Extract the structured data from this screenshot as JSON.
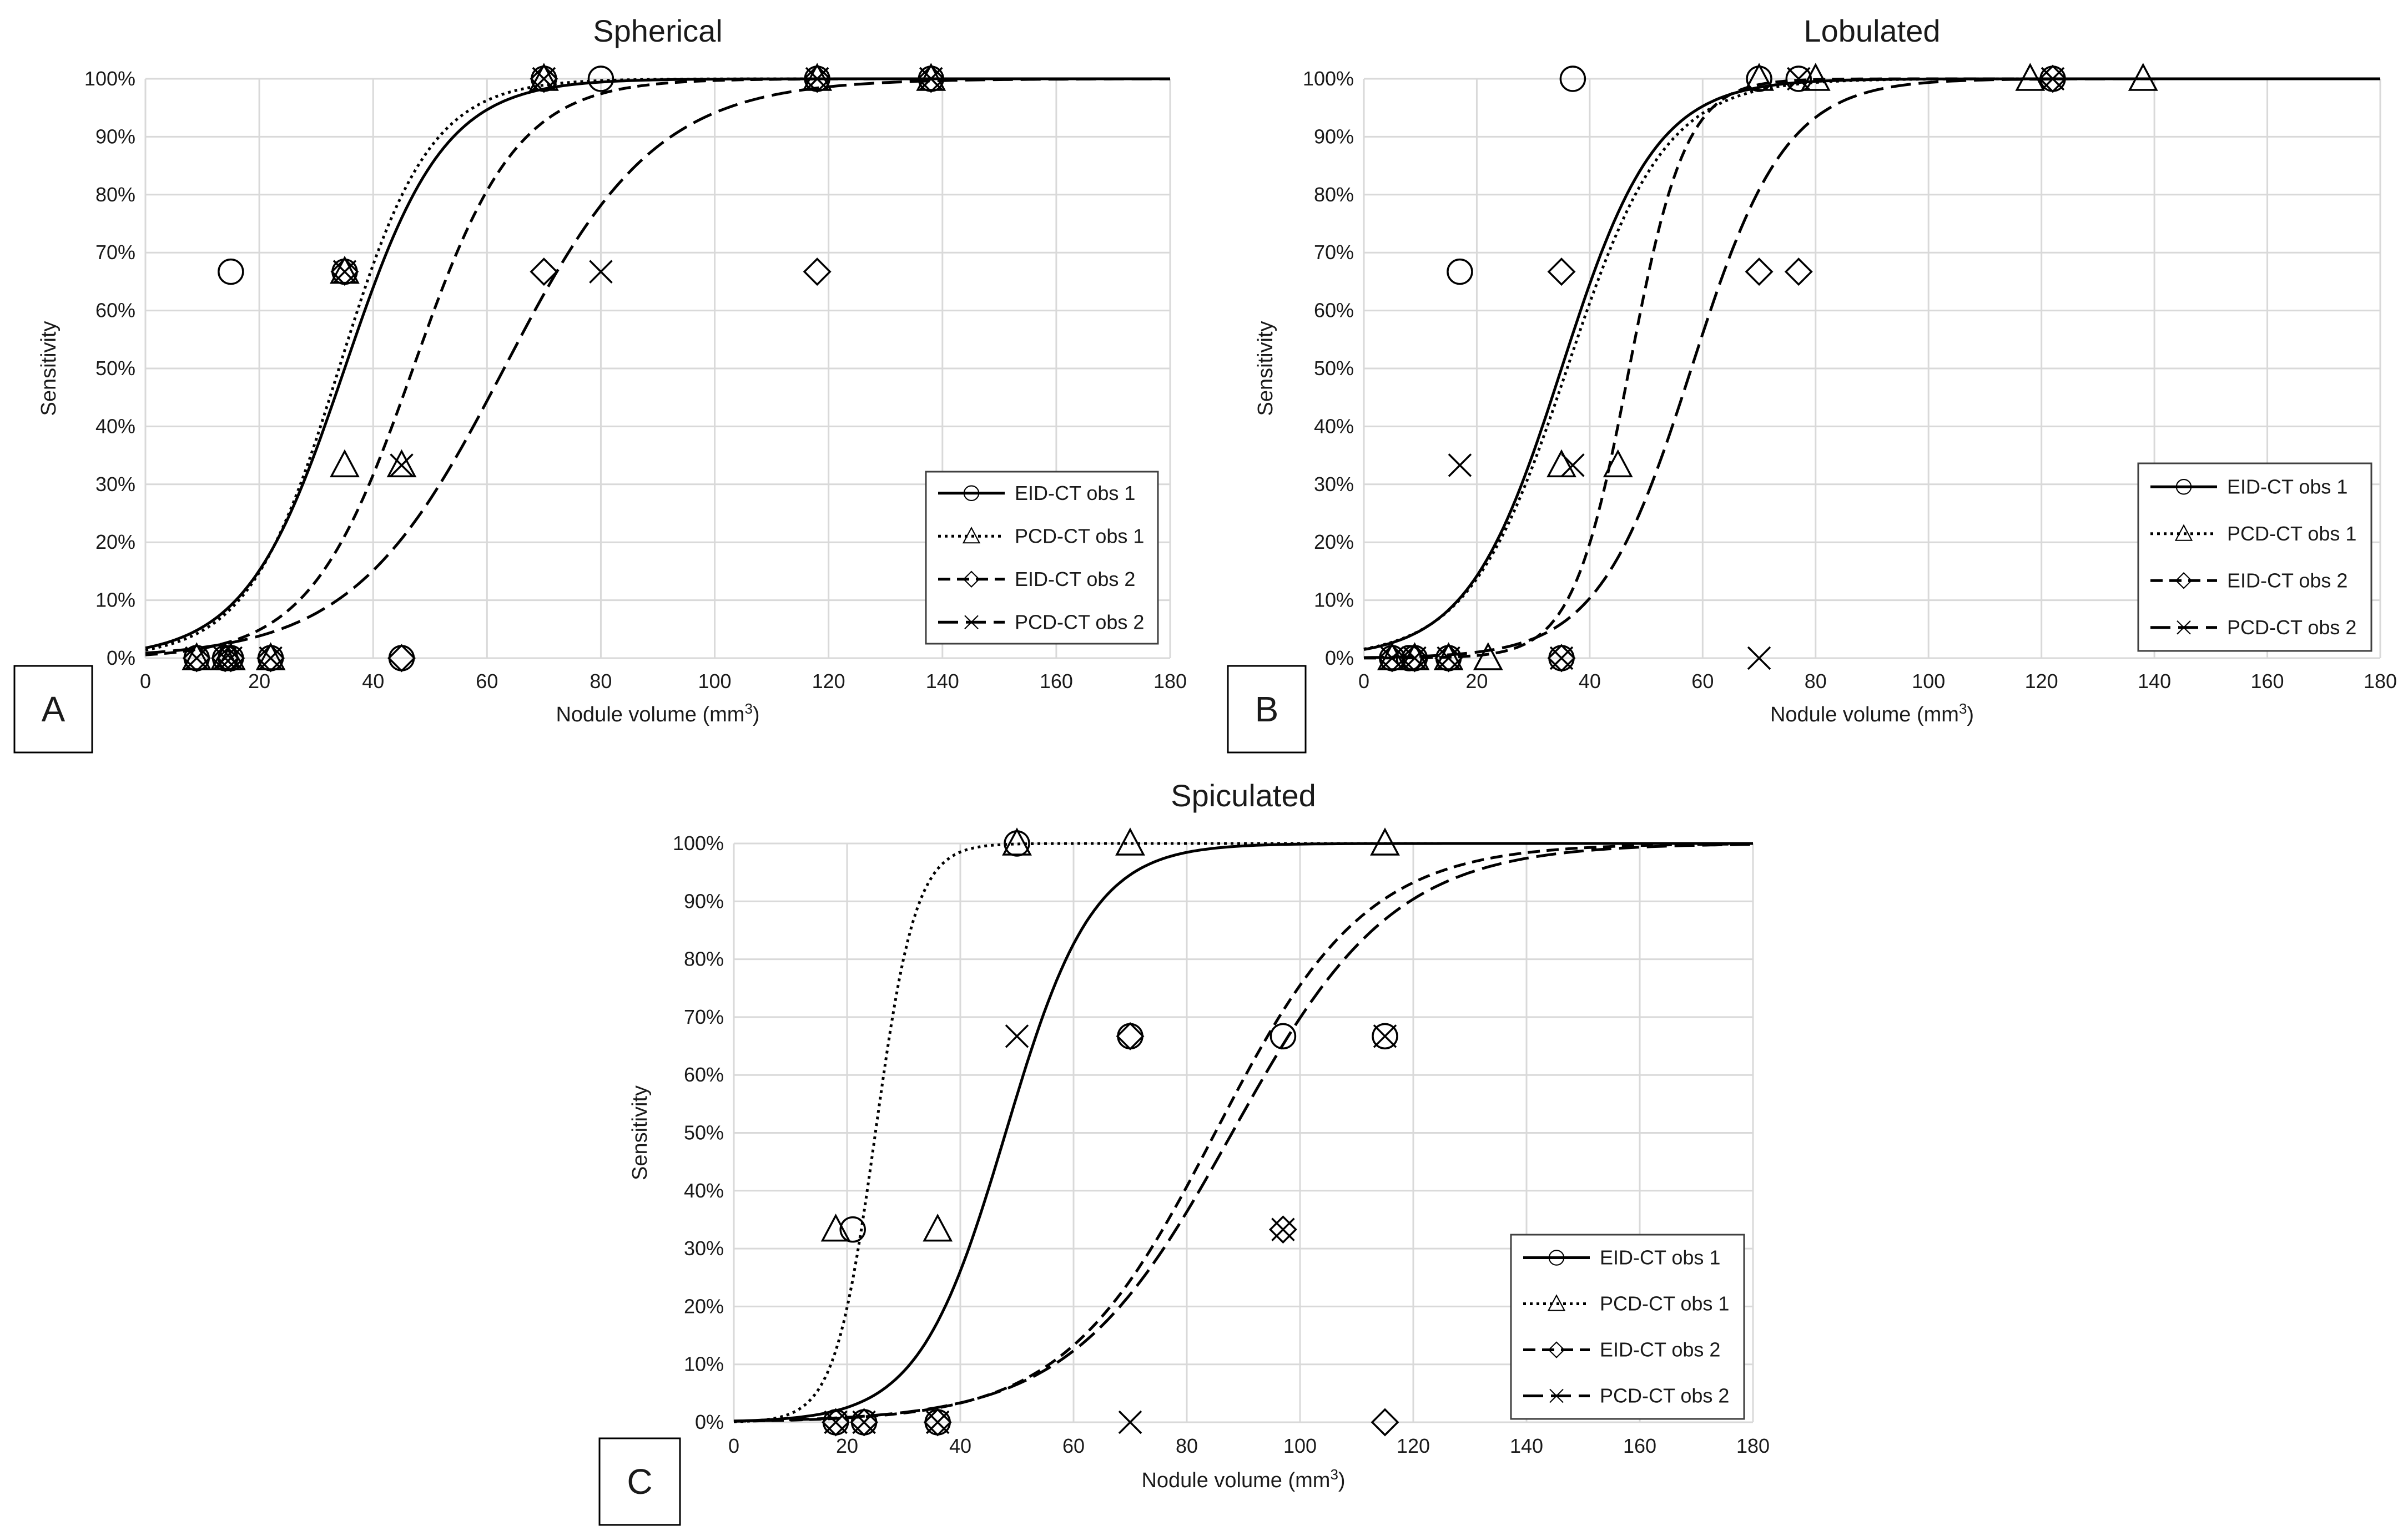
{
  "chart_data": [
    {
      "type": "scatter",
      "panel": "A",
      "title": "Spherical",
      "xlabel": "Nodule volume (mm",
      "xlabel_superscript": "3",
      "xlabel_suffix": ")",
      "ylabel": "Sensitivity",
      "xlim": [
        0,
        180
      ],
      "ylim": [
        0,
        100
      ],
      "x_ticks": [
        "0",
        "20",
        "40",
        "60",
        "80",
        "100",
        "120",
        "140",
        "160",
        "180"
      ],
      "y_ticks": [
        "0%",
        "10%",
        "20%",
        "30%",
        "40%",
        "50%",
        "60%",
        "70%",
        "80%",
        "90%",
        "100%"
      ],
      "grid": true,
      "legend_position": "bottom-right",
      "series": [
        {
          "name": "EID-CT obs 1",
          "marker": "circle",
          "line": "solid",
          "curve": {
            "x50": 35,
            "k": 0.115
          },
          "points": [
            [
              9,
              0
            ],
            [
              14,
              0
            ],
            [
              15,
              0
            ],
            [
              22,
              0
            ],
            [
              15,
              66.7
            ],
            [
              35,
              66.7
            ],
            [
              45,
              0
            ],
            [
              70,
              100
            ],
            [
              80,
              100
            ],
            [
              118,
              100
            ],
            [
              138,
              100
            ]
          ]
        },
        {
          "name": "PCD-CT obs 1",
          "marker": "triangle",
          "line": "dotted",
          "curve": {
            "x50": 34,
            "k": 0.125
          },
          "points": [
            [
              9,
              0
            ],
            [
              14,
              0
            ],
            [
              15,
              0
            ],
            [
              22,
              0
            ],
            [
              35,
              33.3
            ],
            [
              35,
              66.7
            ],
            [
              45,
              33.3
            ],
            [
              70,
              100
            ],
            [
              118,
              100
            ],
            [
              138,
              100
            ]
          ]
        },
        {
          "name": "EID-CT obs 2",
          "marker": "diamond",
          "line": "dashed",
          "curve": {
            "x50": 47,
            "k": 0.11
          },
          "points": [
            [
              9,
              0
            ],
            [
              14,
              0
            ],
            [
              15,
              0
            ],
            [
              22,
              0
            ],
            [
              35,
              66.7
            ],
            [
              45,
              0
            ],
            [
              70,
              66.7
            ],
            [
              70,
              100
            ],
            [
              118,
              66.7
            ],
            [
              118,
              100
            ],
            [
              138,
              100
            ]
          ]
        },
        {
          "name": "PCD-CT obs 2",
          "marker": "x",
          "line": "long-dash",
          "curve": {
            "x50": 63,
            "k": 0.075
          },
          "points": [
            [
              9,
              0
            ],
            [
              14,
              0
            ],
            [
              15,
              0
            ],
            [
              22,
              0
            ],
            [
              35,
              66.7
            ],
            [
              45,
              33.3
            ],
            [
              70,
              100
            ],
            [
              80,
              66.7
            ],
            [
              118,
              100
            ],
            [
              138,
              100
            ]
          ]
        }
      ]
    },
    {
      "type": "scatter",
      "panel": "B",
      "title": "Lobulated",
      "xlabel": "Nodule volume (mm",
      "xlabel_superscript": "3",
      "xlabel_suffix": ")",
      "ylabel": "Sensitivity",
      "xlim": [
        0,
        180
      ],
      "ylim": [
        0,
        100
      ],
      "x_ticks": [
        "0",
        "20",
        "40",
        "60",
        "80",
        "100",
        "120",
        "140",
        "160",
        "180"
      ],
      "y_ticks": [
        "0%",
        "10%",
        "20%",
        "30%",
        "40%",
        "50%",
        "60%",
        "70%",
        "80%",
        "90%",
        "100%"
      ],
      "grid": true,
      "legend_position": "bottom-right",
      "series": [
        {
          "name": "EID-CT obs 1",
          "marker": "circle",
          "line": "solid",
          "curve": {
            "x50": 35,
            "k": 0.12
          },
          "points": [
            [
              5,
              0
            ],
            [
              8,
              0
            ],
            [
              9,
              0
            ],
            [
              15,
              0
            ],
            [
              17,
              66.7
            ],
            [
              35,
              0
            ],
            [
              37,
              100
            ],
            [
              70,
              100
            ],
            [
              77,
              100
            ],
            [
              122,
              100
            ]
          ]
        },
        {
          "name": "PCD-CT obs 1",
          "marker": "triangle",
          "line": "dotted",
          "curve": {
            "x50": 36,
            "k": 0.115
          },
          "points": [
            [
              5,
              0
            ],
            [
              9,
              0
            ],
            [
              15,
              0
            ],
            [
              22,
              0
            ],
            [
              35,
              33.3
            ],
            [
              45,
              33.3
            ],
            [
              70,
              100
            ],
            [
              80,
              100
            ],
            [
              118,
              100
            ],
            [
              138,
              100
            ]
          ]
        },
        {
          "name": "EID-CT obs 2",
          "marker": "diamond",
          "line": "dashed",
          "curve": {
            "x50": 47,
            "k": 0.2
          },
          "points": [
            [
              5,
              0
            ],
            [
              9,
              0
            ],
            [
              15,
              0
            ],
            [
              35,
              0
            ],
            [
              35,
              66.7
            ],
            [
              70,
              66.7
            ],
            [
              77,
              66.7
            ],
            [
              122,
              100
            ]
          ]
        },
        {
          "name": "PCD-CT obs 2",
          "marker": "x",
          "line": "long-dash",
          "curve": {
            "x50": 58,
            "k": 0.12
          },
          "points": [
            [
              5,
              0
            ],
            [
              9,
              0
            ],
            [
              15,
              0
            ],
            [
              17,
              33.3
            ],
            [
              35,
              0
            ],
            [
              37,
              33.3
            ],
            [
              70,
              0
            ],
            [
              77,
              100
            ],
            [
              122,
              100
            ]
          ]
        }
      ]
    },
    {
      "type": "scatter",
      "panel": "C",
      "title": "Spiculated",
      "xlabel": "Nodule volume (mm",
      "xlabel_superscript": "3",
      "xlabel_suffix": ")",
      "ylabel": "Sensitivity",
      "xlim": [
        0,
        180
      ],
      "ylim": [
        0,
        100
      ],
      "x_ticks": [
        "0",
        "20",
        "40",
        "60",
        "80",
        "100",
        "120",
        "140",
        "160",
        "180"
      ],
      "y_ticks": [
        "0%",
        "10%",
        "20%",
        "30%",
        "40%",
        "50%",
        "60%",
        "70%",
        "80%",
        "90%",
        "100%"
      ],
      "grid": true,
      "legend_position": "bottom-right",
      "series": [
        {
          "name": "EID-CT obs 1",
          "marker": "circle",
          "line": "solid",
          "curve": {
            "x50": 48,
            "k": 0.13
          },
          "points": [
            [
              18,
              0
            ],
            [
              21,
              33.3
            ],
            [
              23,
              0
            ],
            [
              36,
              0
            ],
            [
              50,
              100
            ],
            [
              70,
              66.7
            ],
            [
              97,
              66.7
            ],
            [
              115,
              66.7
            ]
          ]
        },
        {
          "name": "PCD-CT obs 1",
          "marker": "triangle",
          "line": "dotted",
          "curve": {
            "x50": 25,
            "k": 0.28
          },
          "points": [
            [
              18,
              33.3
            ],
            [
              36,
              33.3
            ],
            [
              50,
              100
            ],
            [
              70,
              100
            ],
            [
              115,
              100
            ]
          ]
        },
        {
          "name": "EID-CT obs 2",
          "marker": "diamond",
          "line": "dashed",
          "curve": {
            "x50": 85,
            "k": 0.075
          },
          "points": [
            [
              18,
              0
            ],
            [
              23,
              0
            ],
            [
              36,
              0
            ],
            [
              70,
              66.7
            ],
            [
              97,
              33.3
            ],
            [
              115,
              0
            ]
          ]
        },
        {
          "name": "PCD-CT obs 2",
          "marker": "x",
          "line": "long-dash",
          "curve": {
            "x50": 88,
            "k": 0.07
          },
          "points": [
            [
              18,
              0
            ],
            [
              23,
              0
            ],
            [
              36,
              0
            ],
            [
              50,
              66.7
            ],
            [
              70,
              0
            ],
            [
              97,
              33.3
            ],
            [
              115,
              66.7
            ]
          ]
        }
      ]
    }
  ]
}
